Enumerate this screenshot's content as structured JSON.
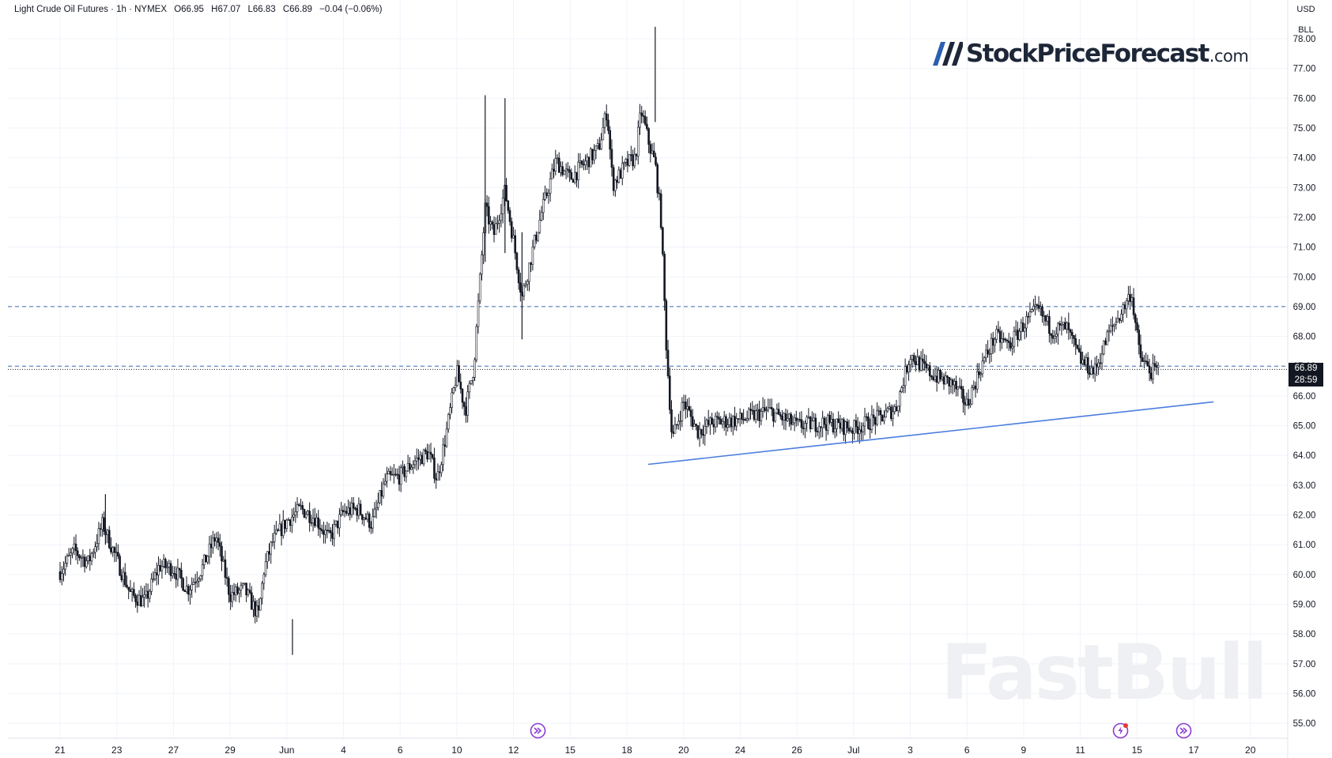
{
  "legend": {
    "title": "Light Crude Oil Futures · 1h · NYMEX",
    "open": "O66.95",
    "high": "H67.07",
    "low": "L66.83",
    "close": "C66.89",
    "change": "−0.04 (−0.06%)"
  },
  "logo": {
    "name": "StockPriceForecast",
    "tld": ".com"
  },
  "watermark": "FastBull",
  "currency": {
    "code": "USD",
    "unit": "BLL"
  },
  "last_price": {
    "value": "66.89",
    "countdown": "28:59"
  },
  "colors": {
    "candles": "#131722",
    "trendline": "#4a7de0",
    "dashed_levels": "#3d6fb0",
    "price_tag_bg": "#131722"
  },
  "icons": [
    "event-arrow-icon",
    "event-flash-icon",
    "event-arrow-icon"
  ],
  "chart_data": {
    "type": "candlestick",
    "title": "Light Crude Oil Futures",
    "interval": "1h",
    "ylim": [
      54.5,
      79.3
    ],
    "y_ticks": [
      55,
      56,
      57,
      58,
      59,
      60,
      61,
      62,
      63,
      64,
      65,
      66,
      67,
      68,
      69,
      70,
      71,
      72,
      73,
      74,
      75,
      76,
      77,
      78
    ],
    "y_tick_labels": [
      "55.00",
      "56.00",
      "57.00",
      "58.00",
      "59.00",
      "60.00",
      "61.00",
      "62.00",
      "63.00",
      "64.00",
      "65.00",
      "66.00",
      "67.00",
      "68.00",
      "69.00",
      "70.00",
      "71.00",
      "72.00",
      "73.00",
      "74.00",
      "75.00",
      "76.00",
      "77.00",
      "78.00"
    ],
    "x_tick_labels": [
      "21",
      "23",
      "27",
      "29",
      "Jun",
      "4",
      "6",
      "10",
      "12",
      "15",
      "18",
      "20",
      "24",
      "26",
      "Jul",
      "3",
      "6",
      "9",
      "11",
      "15",
      "17",
      "20"
    ],
    "x_tick_index": [
      0,
      2,
      4,
      6,
      8,
      10,
      12,
      14,
      16,
      18,
      20,
      22,
      24,
      26,
      28,
      30,
      32,
      34,
      36,
      38,
      40,
      42
    ],
    "session_index_range": [
      0,
      44.7
    ],
    "price_path": [
      [
        0.0,
        60.1
      ],
      [
        0.5,
        60.8
      ],
      [
        1.0,
        60.4
      ],
      [
        1.5,
        61.7
      ],
      [
        2.0,
        60.5
      ],
      [
        2.5,
        59.3
      ],
      [
        3.0,
        59.1
      ],
      [
        3.5,
        60.3
      ],
      [
        4.0,
        60.2
      ],
      [
        4.5,
        59.5
      ],
      [
        5.0,
        60.2
      ],
      [
        5.5,
        61.3
      ],
      [
        6.0,
        59.3
      ],
      [
        6.5,
        59.5
      ],
      [
        7.0,
        58.6
      ],
      [
        7.2,
        60.2
      ],
      [
        7.5,
        61.1
      ],
      [
        8.0,
        61.8
      ],
      [
        8.5,
        62.2
      ],
      [
        9.0,
        61.9
      ],
      [
        9.5,
        61.2
      ],
      [
        10.0,
        62.1
      ],
      [
        10.5,
        62.2
      ],
      [
        11.0,
        61.7
      ],
      [
        11.5,
        63.2
      ],
      [
        12.0,
        63.3
      ],
      [
        12.5,
        63.8
      ],
      [
        13.0,
        64.1
      ],
      [
        13.3,
        63.2
      ],
      [
        13.6,
        64.6
      ],
      [
        14.0,
        66.8
      ],
      [
        14.3,
        65.5
      ],
      [
        14.6,
        67.0
      ],
      [
        15.0,
        72.3
      ],
      [
        15.3,
        71.4
      ],
      [
        15.7,
        72.9
      ],
      [
        16.0,
        71.2
      ],
      [
        16.3,
        69.3
      ],
      [
        16.7,
        71.0
      ],
      [
        17.0,
        72.2
      ],
      [
        17.5,
        73.9
      ],
      [
        18.0,
        73.3
      ],
      [
        18.5,
        73.8
      ],
      [
        19.0,
        74.3
      ],
      [
        19.3,
        75.6
      ],
      [
        19.5,
        73.1
      ],
      [
        20.0,
        73.8
      ],
      [
        20.3,
        74.0
      ],
      [
        20.5,
        75.6
      ],
      [
        20.8,
        74.4
      ],
      [
        21.0,
        73.8
      ],
      [
        21.2,
        72.0
      ],
      [
        21.4,
        67.5
      ],
      [
        21.6,
        64.5
      ],
      [
        22.0,
        65.8
      ],
      [
        22.5,
        64.8
      ],
      [
        23.0,
        65.1
      ],
      [
        24.0,
        65.2
      ],
      [
        25.0,
        65.5
      ],
      [
        26.0,
        65.0
      ],
      [
        27.0,
        65.1
      ],
      [
        28.0,
        64.9
      ],
      [
        29.0,
        65.3
      ],
      [
        29.5,
        65.6
      ],
      [
        30.0,
        67.4
      ],
      [
        30.5,
        66.9
      ],
      [
        31.0,
        66.6
      ],
      [
        31.5,
        66.4
      ],
      [
        32.0,
        65.7
      ],
      [
        32.5,
        67.0
      ],
      [
        33.0,
        68.0
      ],
      [
        33.5,
        67.7
      ],
      [
        34.0,
        68.4
      ],
      [
        34.5,
        68.9
      ],
      [
        35.0,
        68.2
      ],
      [
        35.5,
        68.3
      ],
      [
        36.0,
        67.2
      ],
      [
        36.5,
        66.8
      ],
      [
        37.0,
        68.1
      ],
      [
        37.5,
        68.9
      ],
      [
        37.8,
        69.5
      ],
      [
        38.1,
        67.3
      ],
      [
        38.5,
        66.8
      ],
      [
        38.8,
        66.9
      ]
    ],
    "spikes": [
      {
        "x": 21.0,
        "high": 78.4,
        "low": 75.2
      },
      {
        "x": 15.0,
        "high": 76.1,
        "low": 70.5
      },
      {
        "x": 15.7,
        "high": 76.0,
        "low": 70.8
      },
      {
        "x": 16.3,
        "high": 71.5,
        "low": 67.9
      },
      {
        "x": 8.2,
        "high": 58.5,
        "low": 57.3
      },
      {
        "x": 1.6,
        "high": 62.7,
        "low": 61.0
      }
    ],
    "horizontal_levels": [
      69.0,
      67.0
    ],
    "last_close_level": 66.89,
    "trendline": {
      "from": [
        20.75,
        63.7
      ],
      "to": [
        40.7,
        65.8
      ]
    },
    "event_markers_index": [
      16.85,
      37.4,
      39.65
    ]
  }
}
